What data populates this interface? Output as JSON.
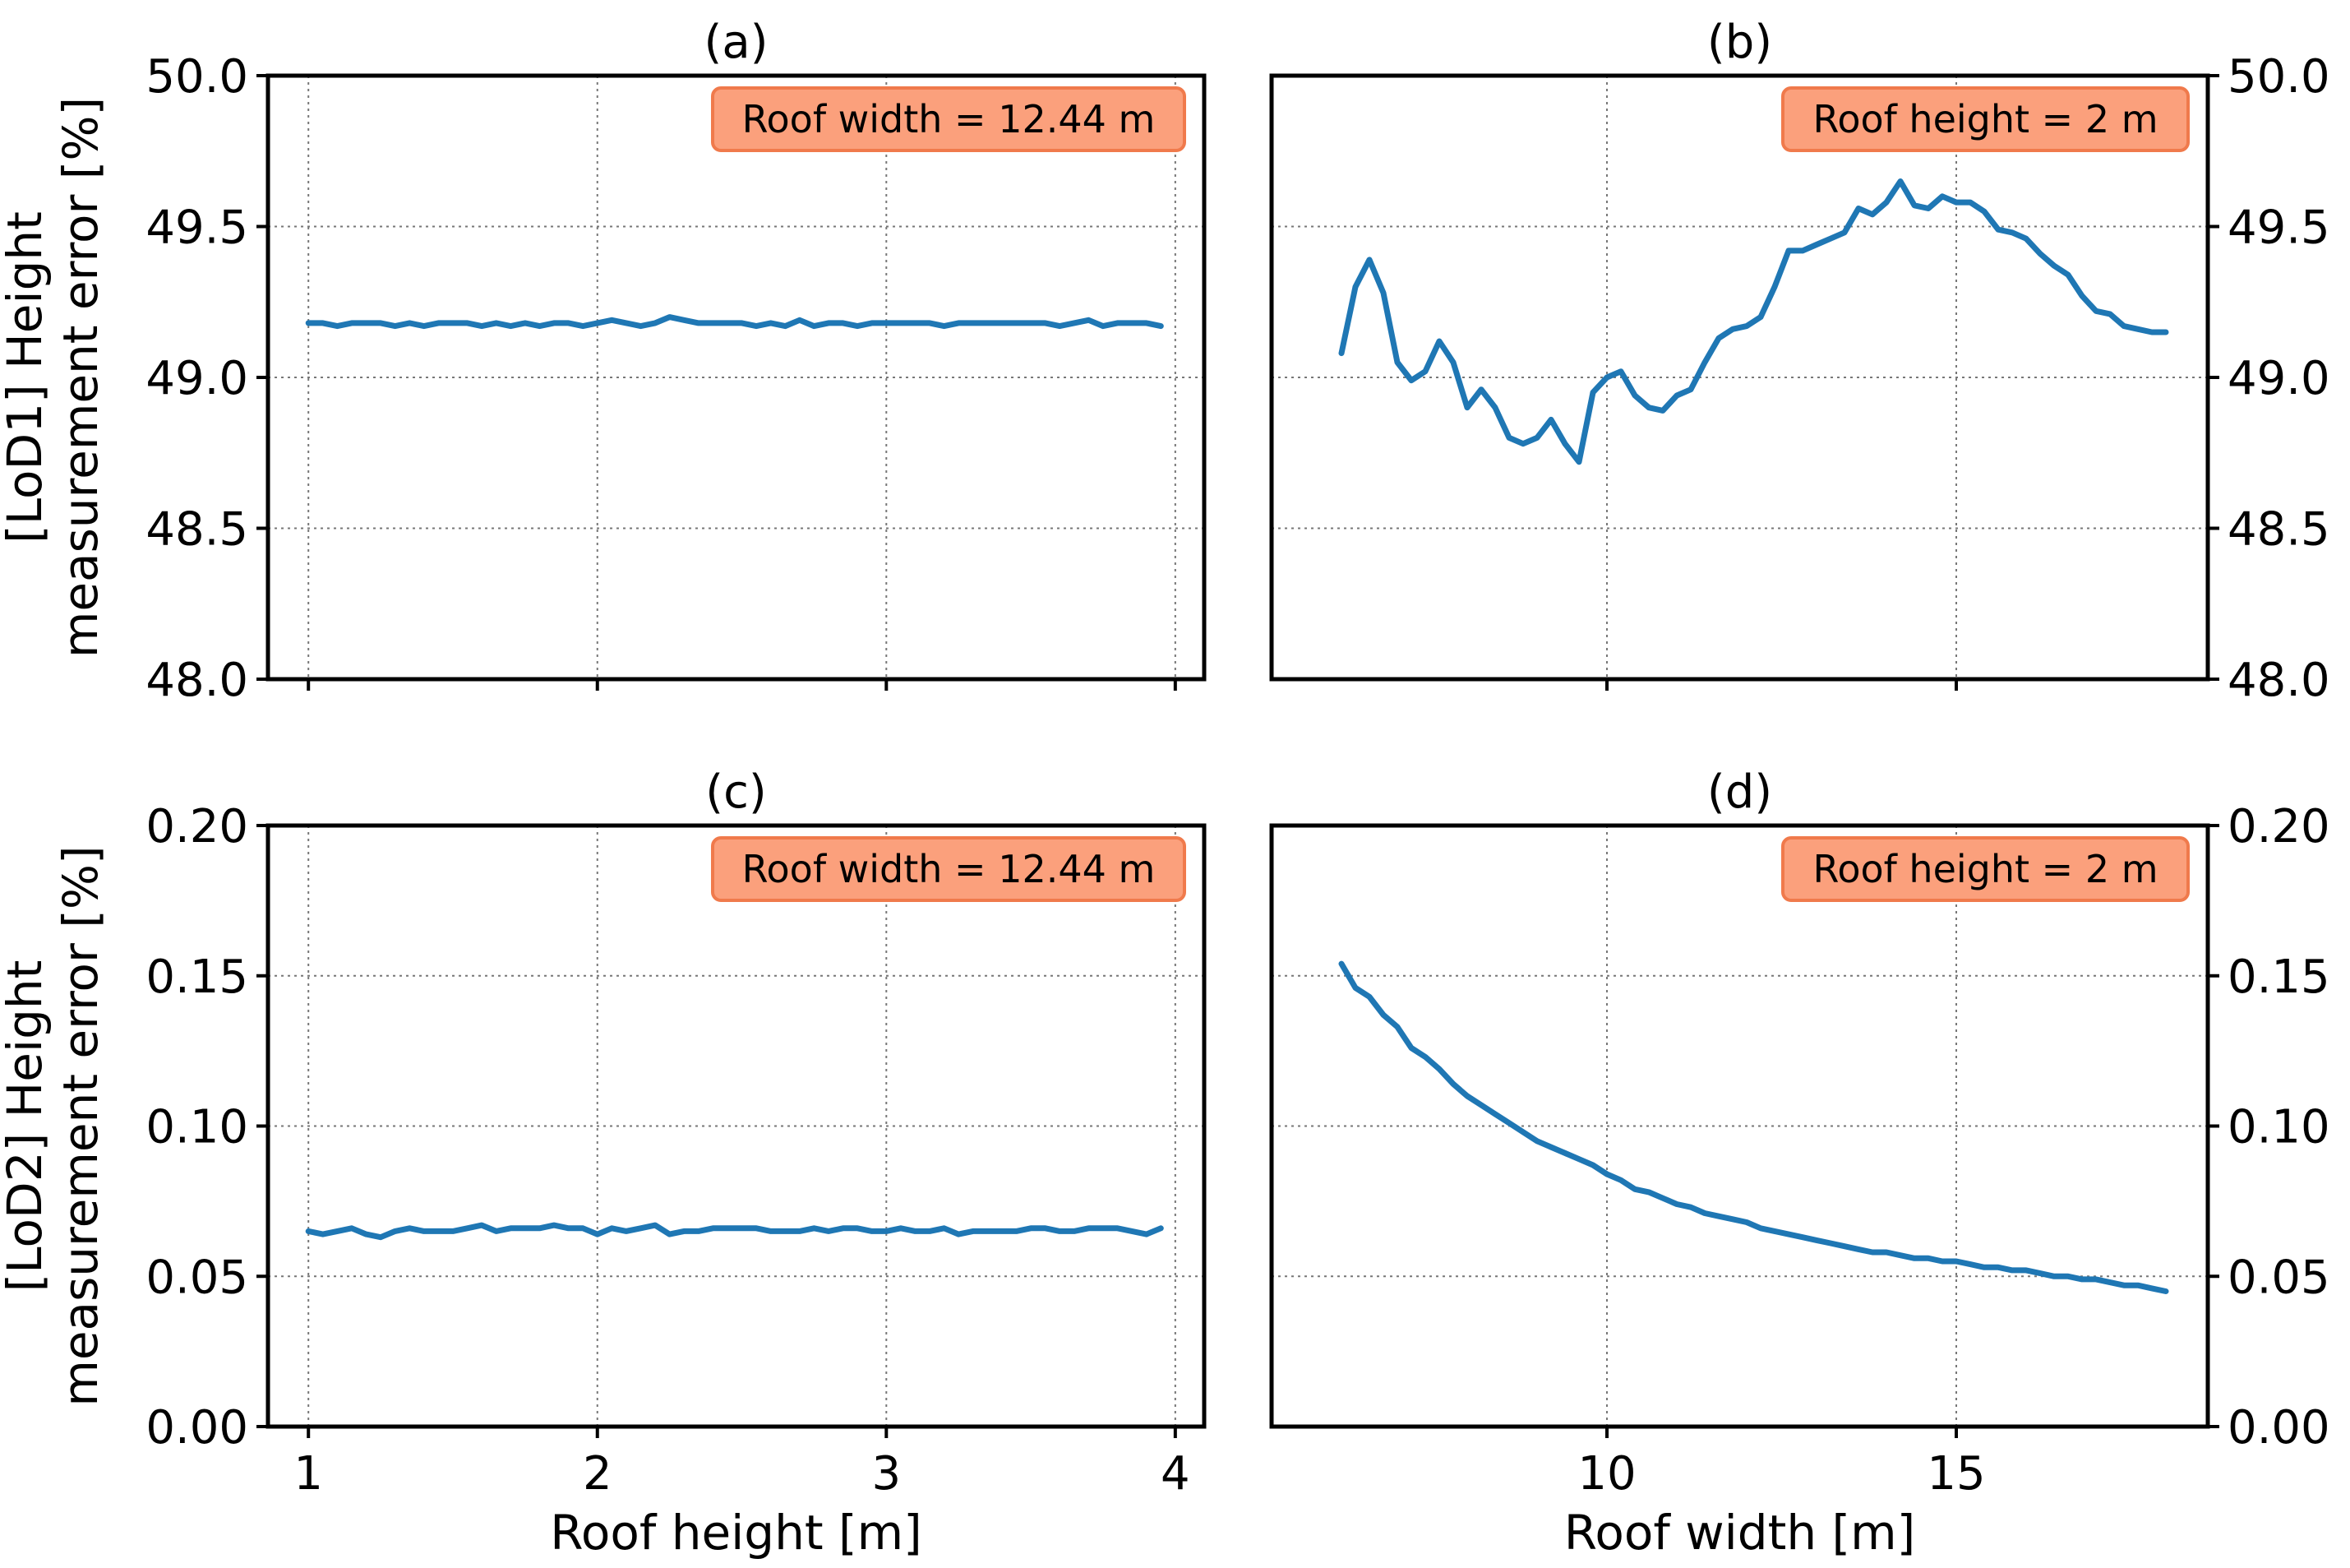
{
  "figure": {
    "colors": {
      "line": "#1f77b4",
      "badge_fill": "#fba07c",
      "badge_stroke": "#f07a4c"
    }
  },
  "chart_data": [
    {
      "id": "a",
      "type": "line",
      "title": "(a)",
      "xlabel": "",
      "ylabel_lines": [
        "[LoD1] Height",
        "measurement error [%]"
      ],
      "annotation": "Roof width = 12.44 m",
      "xlim": [
        0.86,
        4.1
      ],
      "ylim": [
        48.0,
        50.0
      ],
      "xticks": [
        1,
        2,
        3,
        4
      ],
      "xtick_labels": [],
      "yticks": [
        48.0,
        48.5,
        49.0,
        49.5,
        50.0
      ],
      "ytick_labels": [
        "48.0",
        "48.5",
        "49.0",
        "49.5",
        "50.0"
      ],
      "y_axis_side": "left",
      "grid": true,
      "series": [
        {
          "name": "LoD1 error vs roof height",
          "x": [
            1.0,
            1.05,
            1.1,
            1.15,
            1.2,
            1.25,
            1.3,
            1.35,
            1.4,
            1.45,
            1.5,
            1.55,
            1.6,
            1.65,
            1.7,
            1.75,
            1.8,
            1.85,
            1.9,
            1.95,
            2.0,
            2.05,
            2.1,
            2.15,
            2.2,
            2.25,
            2.3,
            2.35,
            2.4,
            2.45,
            2.5,
            2.55,
            2.6,
            2.65,
            2.7,
            2.75,
            2.8,
            2.85,
            2.9,
            2.95,
            3.0,
            3.05,
            3.1,
            3.15,
            3.2,
            3.25,
            3.3,
            3.35,
            3.4,
            3.45,
            3.5,
            3.55,
            3.6,
            3.65,
            3.7,
            3.75,
            3.8,
            3.85,
            3.9,
            3.95
          ],
          "y": [
            49.18,
            49.18,
            49.17,
            49.18,
            49.18,
            49.18,
            49.17,
            49.18,
            49.17,
            49.18,
            49.18,
            49.18,
            49.17,
            49.18,
            49.17,
            49.18,
            49.17,
            49.18,
            49.18,
            49.17,
            49.18,
            49.19,
            49.18,
            49.17,
            49.18,
            49.2,
            49.19,
            49.18,
            49.18,
            49.18,
            49.18,
            49.17,
            49.18,
            49.17,
            49.19,
            49.17,
            49.18,
            49.18,
            49.17,
            49.18,
            49.18,
            49.18,
            49.18,
            49.18,
            49.17,
            49.18,
            49.18,
            49.18,
            49.18,
            49.18,
            49.18,
            49.18,
            49.17,
            49.18,
            49.19,
            49.17,
            49.18,
            49.18,
            49.18,
            49.17
          ]
        }
      ]
    },
    {
      "id": "b",
      "type": "line",
      "title": "(b)",
      "xlabel": "",
      "ylabel_lines": [],
      "annotation": "Roof height = 2 m",
      "xlim": [
        5.2,
        18.6
      ],
      "ylim": [
        48.0,
        50.0
      ],
      "xticks": [
        10,
        15
      ],
      "xtick_labels": [],
      "yticks": [
        48.0,
        48.5,
        49.0,
        49.5,
        50.0
      ],
      "ytick_labels": [
        "48.0",
        "48.5",
        "49.0",
        "49.5",
        "50.0"
      ],
      "y_axis_side": "right",
      "grid": true,
      "series": [
        {
          "name": "LoD1 error vs roof width",
          "x": [
            6.2,
            6.4,
            6.6,
            6.8,
            7.0,
            7.2,
            7.4,
            7.6,
            7.8,
            8.0,
            8.2,
            8.4,
            8.6,
            8.8,
            9.0,
            9.2,
            9.4,
            9.6,
            9.8,
            10.0,
            10.2,
            10.4,
            10.6,
            10.8,
            11.0,
            11.2,
            11.4,
            11.6,
            11.8,
            12.0,
            12.2,
            12.4,
            12.6,
            12.8,
            13.0,
            13.2,
            13.4,
            13.6,
            13.8,
            14.0,
            14.2,
            14.4,
            14.6,
            14.8,
            15.0,
            15.2,
            15.4,
            15.6,
            15.8,
            16.0,
            16.2,
            16.4,
            16.6,
            16.8,
            17.0,
            17.2,
            17.4,
            17.6,
            17.8,
            18.0
          ],
          "y": [
            49.08,
            49.3,
            49.39,
            49.28,
            49.05,
            48.99,
            49.02,
            49.12,
            49.05,
            48.9,
            48.96,
            48.9,
            48.8,
            48.78,
            48.8,
            48.86,
            48.78,
            48.72,
            48.95,
            49.0,
            49.02,
            48.94,
            48.9,
            48.89,
            48.94,
            48.96,
            49.05,
            49.13,
            49.16,
            49.17,
            49.2,
            49.3,
            49.42,
            49.42,
            49.44,
            49.46,
            49.48,
            49.56,
            49.54,
            49.58,
            49.65,
            49.57,
            49.56,
            49.6,
            49.58,
            49.58,
            49.55,
            49.49,
            49.48,
            49.46,
            49.41,
            49.37,
            49.34,
            49.27,
            49.22,
            49.21,
            49.17,
            49.16,
            49.15,
            49.15
          ]
        }
      ]
    },
    {
      "id": "c",
      "type": "line",
      "title": "(c)",
      "xlabel": "Roof height [m]",
      "ylabel_lines": [
        "[LoD2] Height",
        "measurement error [%]"
      ],
      "annotation": "Roof width = 12.44 m",
      "xlim": [
        0.86,
        4.1
      ],
      "ylim": [
        0.0,
        0.2
      ],
      "xticks": [
        1,
        2,
        3,
        4
      ],
      "xtick_labels": [
        "1",
        "2",
        "3",
        "4"
      ],
      "yticks": [
        0.0,
        0.05,
        0.1,
        0.15,
        0.2
      ],
      "ytick_labels": [
        "0.00",
        "0.05",
        "0.10",
        "0.15",
        "0.20"
      ],
      "y_axis_side": "left",
      "grid": true,
      "series": [
        {
          "name": "LoD2 error vs roof height",
          "x": [
            1.0,
            1.05,
            1.1,
            1.15,
            1.2,
            1.25,
            1.3,
            1.35,
            1.4,
            1.45,
            1.5,
            1.55,
            1.6,
            1.65,
            1.7,
            1.75,
            1.8,
            1.85,
            1.9,
            1.95,
            2.0,
            2.05,
            2.1,
            2.15,
            2.2,
            2.25,
            2.3,
            2.35,
            2.4,
            2.45,
            2.5,
            2.55,
            2.6,
            2.65,
            2.7,
            2.75,
            2.8,
            2.85,
            2.9,
            2.95,
            3.0,
            3.05,
            3.1,
            3.15,
            3.2,
            3.25,
            3.3,
            3.35,
            3.4,
            3.45,
            3.5,
            3.55,
            3.6,
            3.65,
            3.7,
            3.75,
            3.8,
            3.85,
            3.9,
            3.95
          ],
          "y": [
            0.065,
            0.064,
            0.065,
            0.066,
            0.064,
            0.063,
            0.065,
            0.066,
            0.065,
            0.065,
            0.065,
            0.066,
            0.067,
            0.065,
            0.066,
            0.066,
            0.066,
            0.067,
            0.066,
            0.066,
            0.064,
            0.066,
            0.065,
            0.066,
            0.067,
            0.064,
            0.065,
            0.065,
            0.066,
            0.066,
            0.066,
            0.066,
            0.065,
            0.065,
            0.065,
            0.066,
            0.065,
            0.066,
            0.066,
            0.065,
            0.065,
            0.066,
            0.065,
            0.065,
            0.066,
            0.064,
            0.065,
            0.065,
            0.065,
            0.065,
            0.066,
            0.066,
            0.065,
            0.065,
            0.066,
            0.066,
            0.066,
            0.065,
            0.064,
            0.066
          ]
        }
      ]
    },
    {
      "id": "d",
      "type": "line",
      "title": "(d)",
      "xlabel": "Roof width [m]",
      "ylabel_lines": [],
      "annotation": "Roof height = 2 m",
      "xlim": [
        5.2,
        18.6
      ],
      "ylim": [
        0.0,
        0.2
      ],
      "xticks": [
        10,
        15
      ],
      "xtick_labels": [
        "10",
        "15"
      ],
      "yticks": [
        0.0,
        0.05,
        0.1,
        0.15,
        0.2
      ],
      "ytick_labels": [
        "0.00",
        "0.05",
        "0.10",
        "0.15",
        "0.20"
      ],
      "y_axis_side": "right",
      "grid": true,
      "series": [
        {
          "name": "LoD2 error vs roof width",
          "x": [
            6.2,
            6.4,
            6.6,
            6.8,
            7.0,
            7.2,
            7.4,
            7.6,
            7.8,
            8.0,
            8.2,
            8.4,
            8.6,
            8.8,
            9.0,
            9.2,
            9.4,
            9.6,
            9.8,
            10.0,
            10.2,
            10.4,
            10.6,
            10.8,
            11.0,
            11.2,
            11.4,
            11.6,
            11.8,
            12.0,
            12.2,
            12.4,
            12.6,
            12.8,
            13.0,
            13.2,
            13.4,
            13.6,
            13.8,
            14.0,
            14.2,
            14.4,
            14.6,
            14.8,
            15.0,
            15.2,
            15.4,
            15.6,
            15.8,
            16.0,
            16.2,
            16.4,
            16.6,
            16.8,
            17.0,
            17.2,
            17.4,
            17.6,
            17.8,
            18.0
          ],
          "y": [
            0.154,
            0.146,
            0.143,
            0.137,
            0.133,
            0.126,
            0.123,
            0.119,
            0.114,
            0.11,
            0.107,
            0.104,
            0.101,
            0.098,
            0.095,
            0.093,
            0.091,
            0.089,
            0.087,
            0.084,
            0.082,
            0.079,
            0.078,
            0.076,
            0.074,
            0.073,
            0.071,
            0.07,
            0.069,
            0.068,
            0.066,
            0.065,
            0.064,
            0.063,
            0.062,
            0.061,
            0.06,
            0.059,
            0.058,
            0.058,
            0.057,
            0.056,
            0.056,
            0.055,
            0.055,
            0.054,
            0.053,
            0.053,
            0.052,
            0.052,
            0.051,
            0.05,
            0.05,
            0.049,
            0.049,
            0.048,
            0.047,
            0.047,
            0.046,
            0.045
          ]
        }
      ]
    }
  ]
}
